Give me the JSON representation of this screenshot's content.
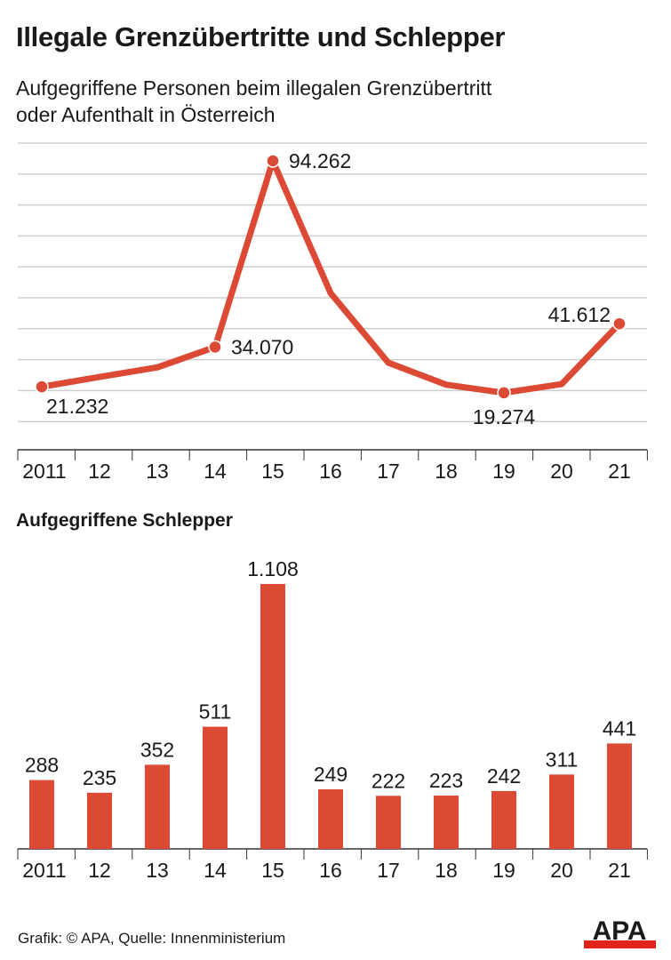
{
  "title": "Illegale Grenzübertritte und Schlepper",
  "footer": "Grafik: © APA, Quelle: Innenministerium",
  "logo_text": "APA",
  "colors": {
    "line": "#dc4a35",
    "bar": "#dc4a35",
    "grid": "#cfcfcf",
    "logo_red": "#e2231a"
  },
  "chart_data": [
    {
      "type": "line",
      "title": "",
      "subtitle": "Aufgegriffene Personen beim illegalen Grenzübertritt oder Aufenthalt in Österreich",
      "subtitle_lines": [
        "Aufgegriffene Personen beim illegalen Grenzübertritt",
        "oder Aufenthalt in Österreich"
      ],
      "categories": [
        "2011",
        "12",
        "13",
        "14",
        "15",
        "16",
        "17",
        "18",
        "19",
        "20",
        "21"
      ],
      "values": [
        21232,
        24400,
        27500,
        34070,
        94262,
        51500,
        29000,
        21900,
        19274,
        22100,
        41612
      ],
      "data_labels": {
        "0": "21.232",
        "3": "34.070",
        "4": "94.262",
        "8": "19.274",
        "10": "41.612"
      },
      "ylim": [
        0,
        100000
      ],
      "grid": true,
      "grid_step": 10000,
      "y_tick_labels": false
    },
    {
      "type": "bar",
      "title": "Aufgegriffene Schlepper",
      "categories": [
        "2011",
        "12",
        "13",
        "14",
        "15",
        "16",
        "17",
        "18",
        "19",
        "20",
        "21"
      ],
      "values": [
        288,
        235,
        352,
        511,
        1108,
        249,
        222,
        223,
        242,
        311,
        441
      ],
      "data_labels": [
        "288",
        "235",
        "352",
        "511",
        "1.108",
        "249",
        "222",
        "223",
        "242",
        "311",
        "441"
      ],
      "grid": false
    }
  ]
}
